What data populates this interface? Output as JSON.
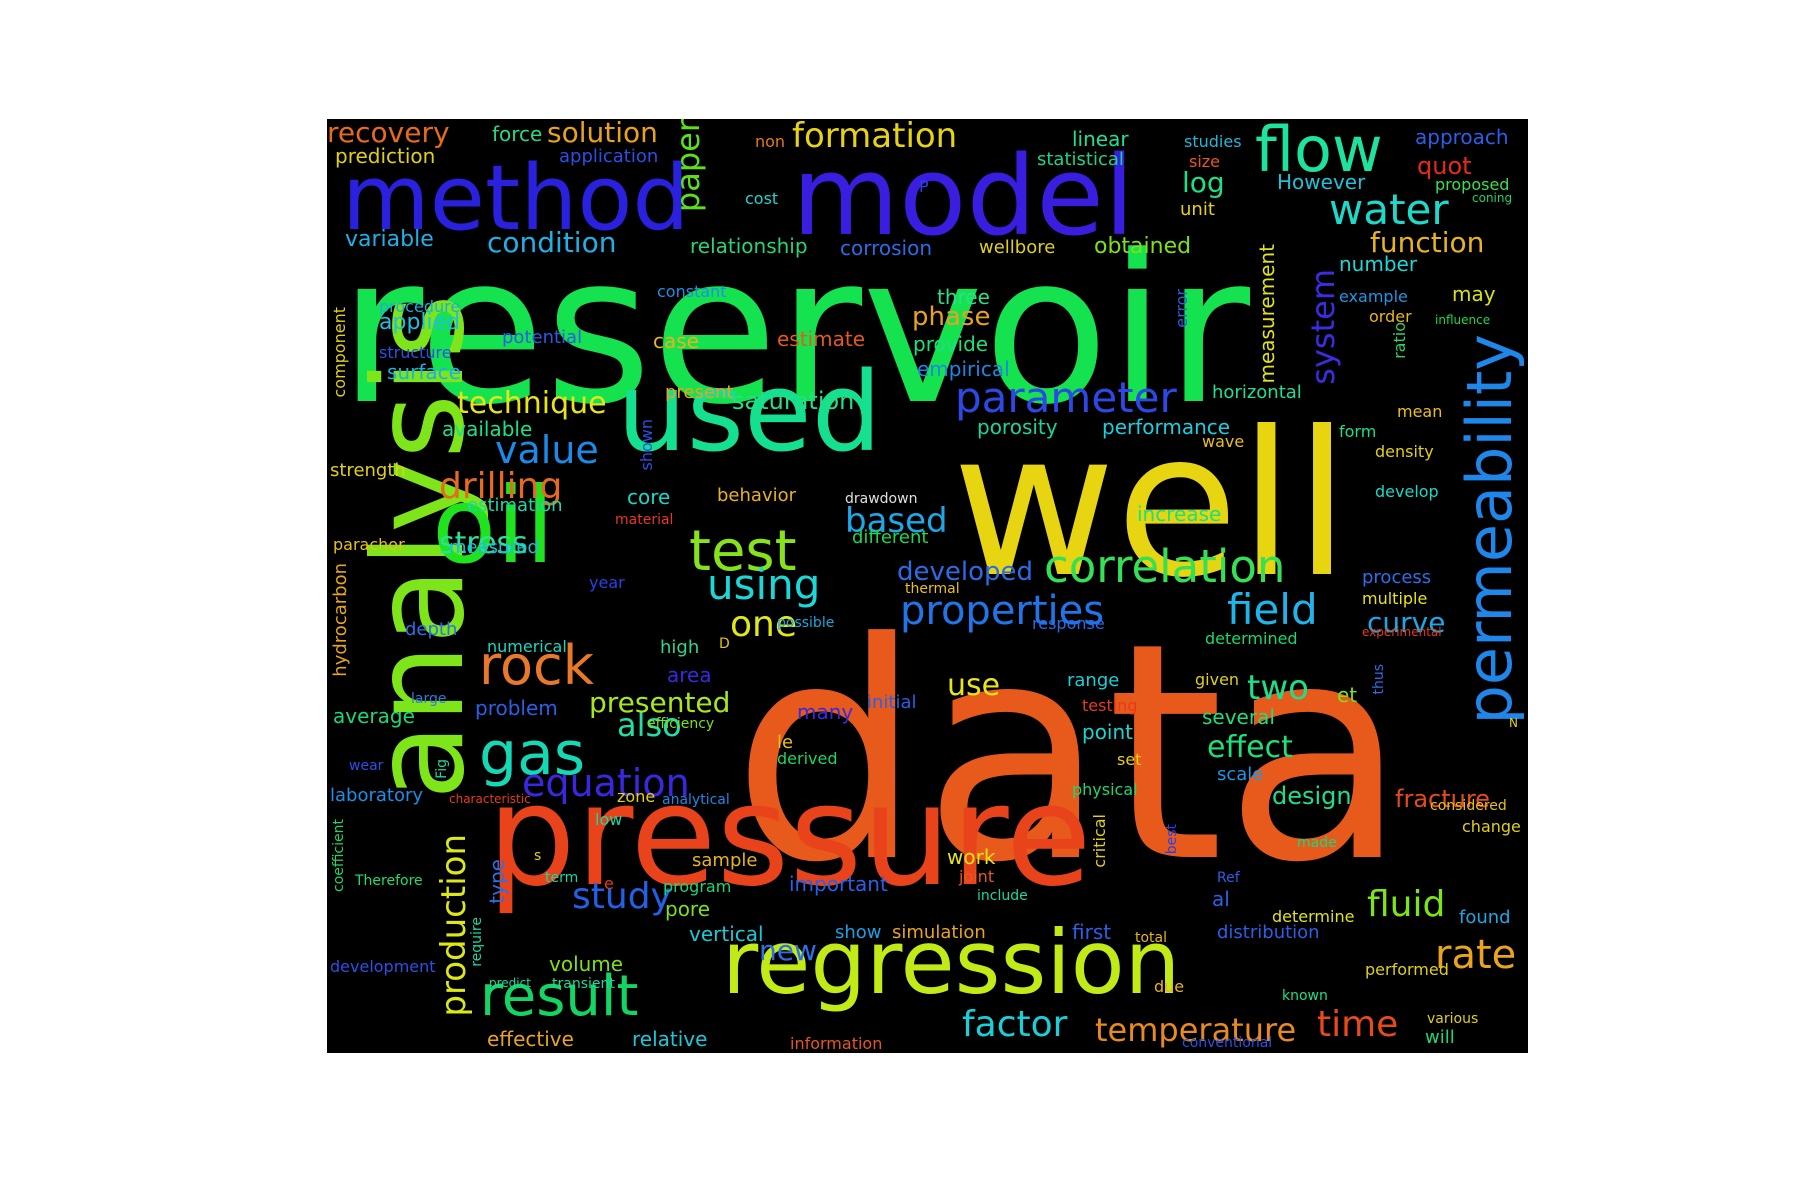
{
  "figure": {
    "background": "#ffffff",
    "panel_background": "#000000"
  },
  "words": [
    {
      "text": "data",
      "color": "#e85a1c"
    },
    {
      "text": "reservoir",
      "color": "#15e24f"
    },
    {
      "text": "well",
      "color": "#e8d512"
    },
    {
      "text": "pressure",
      "color": "#e8431a"
    },
    {
      "text": "analysis",
      "color": "#7ee51a"
    },
    {
      "text": "model",
      "color": "#3a1ee0"
    },
    {
      "text": "method",
      "color": "#2a21de"
    },
    {
      "text": "used",
      "color": "#14e08f"
    },
    {
      "text": "oil",
      "color": "#1fe31f"
    },
    {
      "text": "regression",
      "color": "#c2ea16"
    },
    {
      "text": "permeability",
      "color": "#1f86ea"
    },
    {
      "text": "flow",
      "color": "#1ee39e"
    },
    {
      "text": "rock",
      "color": "#e8792a"
    },
    {
      "text": "test",
      "color": "#86e21a"
    },
    {
      "text": "result",
      "color": "#14d463"
    },
    {
      "text": "gas",
      "color": "#15d8b5"
    },
    {
      "text": "correlation",
      "color": "#36e056"
    },
    {
      "text": "parameter",
      "color": "#2c48e6"
    },
    {
      "text": "properties",
      "color": "#1f76ea"
    },
    {
      "text": "water",
      "color": "#1ed9c9"
    },
    {
      "text": "field",
      "color": "#1fb5ea"
    },
    {
      "text": "using",
      "color": "#1ad8d8"
    },
    {
      "text": "equation",
      "color": "#3a28e0"
    },
    {
      "text": "production",
      "color": "#dde818"
    },
    {
      "text": "value",
      "color": "#1c8ae8"
    },
    {
      "text": "fluid",
      "color": "#7de41a"
    },
    {
      "text": "rate",
      "color": "#e8a41d"
    },
    {
      "text": "study",
      "color": "#2360e8"
    },
    {
      "text": "system",
      "color": "#3c2de2"
    },
    {
      "text": "drilling",
      "color": "#e86a1c"
    },
    {
      "text": "formation",
      "color": "#e8d312"
    },
    {
      "text": "based",
      "color": "#1da8e8"
    },
    {
      "text": "factor",
      "color": "#1acfd8"
    },
    {
      "text": "time",
      "color": "#e84a1a"
    },
    {
      "text": "temperature",
      "color": "#e88a1e"
    },
    {
      "text": "paper",
      "color": "#5ce01a"
    },
    {
      "text": "two",
      "color": "#1ae08a"
    },
    {
      "text": "one",
      "color": "#e0e818"
    },
    {
      "text": "also",
      "color": "#1ee0a6"
    },
    {
      "text": "effect",
      "color": "#1ee07a"
    },
    {
      "text": "technique",
      "color": "#e8e418"
    },
    {
      "text": "stress",
      "color": "#2be09c"
    },
    {
      "text": "solution",
      "color": "#e8a21d"
    },
    {
      "text": "recovery",
      "color": "#e86a1c"
    },
    {
      "text": "condition",
      "color": "#1fb0e8"
    },
    {
      "text": "function",
      "color": "#e8b41d"
    },
    {
      "text": "use",
      "color": "#e8e418"
    },
    {
      "text": "presented",
      "color": "#a8e818"
    },
    {
      "text": "new",
      "color": "#2a70e8"
    },
    {
      "text": "log",
      "color": "#1ce088"
    },
    {
      "text": "curve",
      "color": "#1ca8e8"
    },
    {
      "text": "design",
      "color": "#1ae08e"
    },
    {
      "text": "fracture",
      "color": "#e84a1a"
    },
    {
      "text": "developed",
      "color": "#2a6ce8"
    },
    {
      "text": "phase",
      "color": "#e8a21d"
    },
    {
      "text": "saturation",
      "color": "#22e084"
    },
    {
      "text": "measurement",
      "color": "#e0e418"
    },
    {
      "text": "However",
      "color": "#1fc2d8"
    },
    {
      "text": "obtained",
      "color": "#7ce01a"
    },
    {
      "text": "applied",
      "color": "#1fbfe0"
    },
    {
      "text": "variable",
      "color": "#1fb0e8"
    },
    {
      "text": "relationship",
      "color": "#2ad472"
    },
    {
      "text": "corrosion",
      "color": "#2a6ce8"
    },
    {
      "text": "wellbore",
      "color": "#e0d018"
    },
    {
      "text": "number",
      "color": "#1ad8d8"
    },
    {
      "text": "linear",
      "color": "#1ce096"
    },
    {
      "text": "statistical",
      "color": "#1ad48c"
    },
    {
      "text": "unit",
      "color": "#e8d012"
    },
    {
      "text": "approach",
      "color": "#2a60e8"
    },
    {
      "text": "quot",
      "color": "#e82a1a"
    },
    {
      "text": "proposed",
      "color": "#3ae04a"
    },
    {
      "text": "coning",
      "color": "#1ad46a"
    },
    {
      "text": "studies",
      "color": "#1fb8d8"
    },
    {
      "text": "size",
      "color": "#e8581c"
    },
    {
      "text": "force",
      "color": "#2ad882"
    },
    {
      "text": "application",
      "color": "#2a50e8"
    },
    {
      "text": "prediction",
      "color": "#e0d018"
    },
    {
      "text": "non",
      "color": "#e8781c"
    },
    {
      "text": "cost",
      "color": "#1ad8d0"
    },
    {
      "text": "P",
      "color": "#2a40e8"
    },
    {
      "text": "constant",
      "color": "#1a90e8"
    },
    {
      "text": "three",
      "color": "#28e08a"
    },
    {
      "text": "provide",
      "color": "#1ae07e"
    },
    {
      "text": "empirical",
      "color": "#1a88e8"
    },
    {
      "text": "estimate",
      "color": "#e8581c"
    },
    {
      "text": "case",
      "color": "#e8b41d"
    },
    {
      "text": "potential",
      "color": "#2a5ce8"
    },
    {
      "text": "procedure",
      "color": "#1ab0d8"
    },
    {
      "text": "structure",
      "color": "#2a50e8"
    },
    {
      "text": "surface",
      "color": "#1ab0e8"
    },
    {
      "text": "present",
      "color": "#e8a41d"
    },
    {
      "text": "available",
      "color": "#1ae08a"
    },
    {
      "text": "porosity",
      "color": "#1ad4a0"
    },
    {
      "text": "performance",
      "color": "#1ad0e0"
    },
    {
      "text": "horizontal",
      "color": "#1ce09a"
    },
    {
      "text": "wave",
      "color": "#e8c018"
    },
    {
      "text": "form",
      "color": "#1ae08a"
    },
    {
      "text": "mean",
      "color": "#e8c01d"
    },
    {
      "text": "density",
      "color": "#e0d018"
    },
    {
      "text": "develop",
      "color": "#1ad8c8"
    },
    {
      "text": "ratio",
      "color": "#2ad860"
    },
    {
      "text": "error",
      "color": "#2a60e8"
    },
    {
      "text": "example",
      "color": "#1a98e8"
    },
    {
      "text": "order",
      "color": "#e8b41d"
    },
    {
      "text": "may",
      "color": "#d8e018"
    },
    {
      "text": "influence",
      "color": "#1ad84a"
    },
    {
      "text": "component",
      "color": "#e0d018"
    },
    {
      "text": "strength",
      "color": "#e0d018"
    },
    {
      "text": "estimation",
      "color": "#1ad8a8"
    },
    {
      "text": "material",
      "color": "#e83a1a"
    },
    {
      "text": "core",
      "color": "#1ad8c8"
    },
    {
      "text": "shown",
      "color": "#2a50e8"
    },
    {
      "text": "behavior",
      "color": "#e8b41d"
    },
    {
      "text": "drawdown",
      "color": "#e0e0e0"
    },
    {
      "text": "increase",
      "color": "#1ae07e"
    },
    {
      "text": "different",
      "color": "#1ad84e"
    },
    {
      "text": "parachor",
      "color": "#e8c01d"
    },
    {
      "text": "measured",
      "color": "#1abcd8"
    },
    {
      "text": "hydrocarbon",
      "color": "#e8a41d"
    },
    {
      "text": "depth",
      "color": "#2a70e8"
    },
    {
      "text": "year",
      "color": "#2a40e8"
    },
    {
      "text": "thermal",
      "color": "#e8c01d"
    },
    {
      "text": "possible",
      "color": "#1aa8e0"
    },
    {
      "text": "response",
      "color": "#2a6ce8"
    },
    {
      "text": "determined",
      "color": "#1ad86e"
    },
    {
      "text": "experimental",
      "color": "#e83a1a"
    },
    {
      "text": "process",
      "color": "#2a70e8"
    },
    {
      "text": "multiple",
      "color": "#e8e418"
    },
    {
      "text": "numerical",
      "color": "#1ad8c0"
    },
    {
      "text": "high",
      "color": "#2ad890"
    },
    {
      "text": "D",
      "color": "#e8c018"
    },
    {
      "text": "area",
      "color": "#3a28e0"
    },
    {
      "text": "large",
      "color": "#2a7ce8"
    },
    {
      "text": "problem",
      "color": "#2a60e8"
    },
    {
      "text": "efficiency",
      "color": "#7ce01a"
    },
    {
      "text": "many",
      "color": "#3a28e0"
    },
    {
      "text": "initial",
      "color": "#2a60e8"
    },
    {
      "text": "range",
      "color": "#1ad0d8"
    },
    {
      "text": "testing",
      "color": "#e83a1a"
    },
    {
      "text": "given",
      "color": "#e0d018"
    },
    {
      "text": "et",
      "color": "#7ce01a"
    },
    {
      "text": "thus",
      "color": "#2a70e8"
    },
    {
      "text": "N",
      "color": "#e0d018"
    },
    {
      "text": "average",
      "color": "#1ad878"
    },
    {
      "text": "le",
      "color": "#e8c01d"
    },
    {
      "text": "derived",
      "color": "#1ad860"
    },
    {
      "text": "point",
      "color": "#1ad4d0"
    },
    {
      "text": "several",
      "color": "#1ae07e"
    },
    {
      "text": "set",
      "color": "#e8d012"
    },
    {
      "text": "scale",
      "color": "#1a98e8"
    },
    {
      "text": "physical",
      "color": "#1ad870"
    },
    {
      "text": "considered",
      "color": "#e8c01d"
    },
    {
      "text": "change",
      "color": "#e0d018"
    },
    {
      "text": "wear",
      "color": "#2a50e8"
    },
    {
      "text": "Fig",
      "color": "#1ad8a8"
    },
    {
      "text": "laboratory",
      "color": "#1a90e8"
    },
    {
      "text": "characteristic",
      "color": "#e83a1a"
    },
    {
      "text": "zone",
      "color": "#e8d012"
    },
    {
      "text": "analytical",
      "color": "#1a88e8"
    },
    {
      "text": "low",
      "color": "#1ad8a0"
    },
    {
      "text": "type",
      "color": "#2a70e8"
    },
    {
      "text": "s",
      "color": "#e8d012"
    },
    {
      "text": "sample",
      "color": "#e8b41d"
    },
    {
      "text": "work",
      "color": "#e8e418"
    },
    {
      "text": "joint",
      "color": "#e8581c"
    },
    {
      "text": "include",
      "color": "#1ad8a0"
    },
    {
      "text": "critical",
      "color": "#e0d018"
    },
    {
      "text": "best",
      "color": "#2a40e8"
    },
    {
      "text": "made",
      "color": "#1ad878"
    },
    {
      "text": "coefficient",
      "color": "#1ad860"
    },
    {
      "text": "Therefore",
      "color": "#1ae06e"
    },
    {
      "text": "term",
      "color": "#1ad8a0"
    },
    {
      "text": "e",
      "color": "#e83a1a"
    },
    {
      "text": "program",
      "color": "#1ad878"
    },
    {
      "text": "important",
      "color": "#2a60e8"
    },
    {
      "text": "Ref",
      "color": "#2a60e8"
    },
    {
      "text": "al",
      "color": "#2a60e8"
    },
    {
      "text": "determine",
      "color": "#e0e418"
    },
    {
      "text": "found",
      "color": "#1aa8e8"
    },
    {
      "text": "pore",
      "color": "#7ce01a"
    },
    {
      "text": "show",
      "color": "#1aa0e8"
    },
    {
      "text": "simulation",
      "color": "#e8a41d"
    },
    {
      "text": "vertical",
      "color": "#1ac8d8"
    },
    {
      "text": "first",
      "color": "#2a60e8"
    },
    {
      "text": "total",
      "color": "#e8b41d"
    },
    {
      "text": "distribution",
      "color": "#2a60e8"
    },
    {
      "text": "development",
      "color": "#2a50e8"
    },
    {
      "text": "require",
      "color": "#1ad8a0"
    },
    {
      "text": "predict",
      "color": "#1ad8a0"
    },
    {
      "text": "transient",
      "color": "#1ad8a0"
    },
    {
      "text": "volume",
      "color": "#7ce01a"
    },
    {
      "text": "due",
      "color": "#e8b41d"
    },
    {
      "text": "known",
      "color": "#1ae08a"
    },
    {
      "text": "performed",
      "color": "#e0d018"
    },
    {
      "text": "various",
      "color": "#e0d018"
    },
    {
      "text": "will",
      "color": "#1ad878"
    },
    {
      "text": "effective",
      "color": "#e8a41d"
    },
    {
      "text": "relative",
      "color": "#1ac8d8"
    },
    {
      "text": "information",
      "color": "#e8581c"
    },
    {
      "text": "conventional",
      "color": "#2a50e8"
    }
  ]
}
